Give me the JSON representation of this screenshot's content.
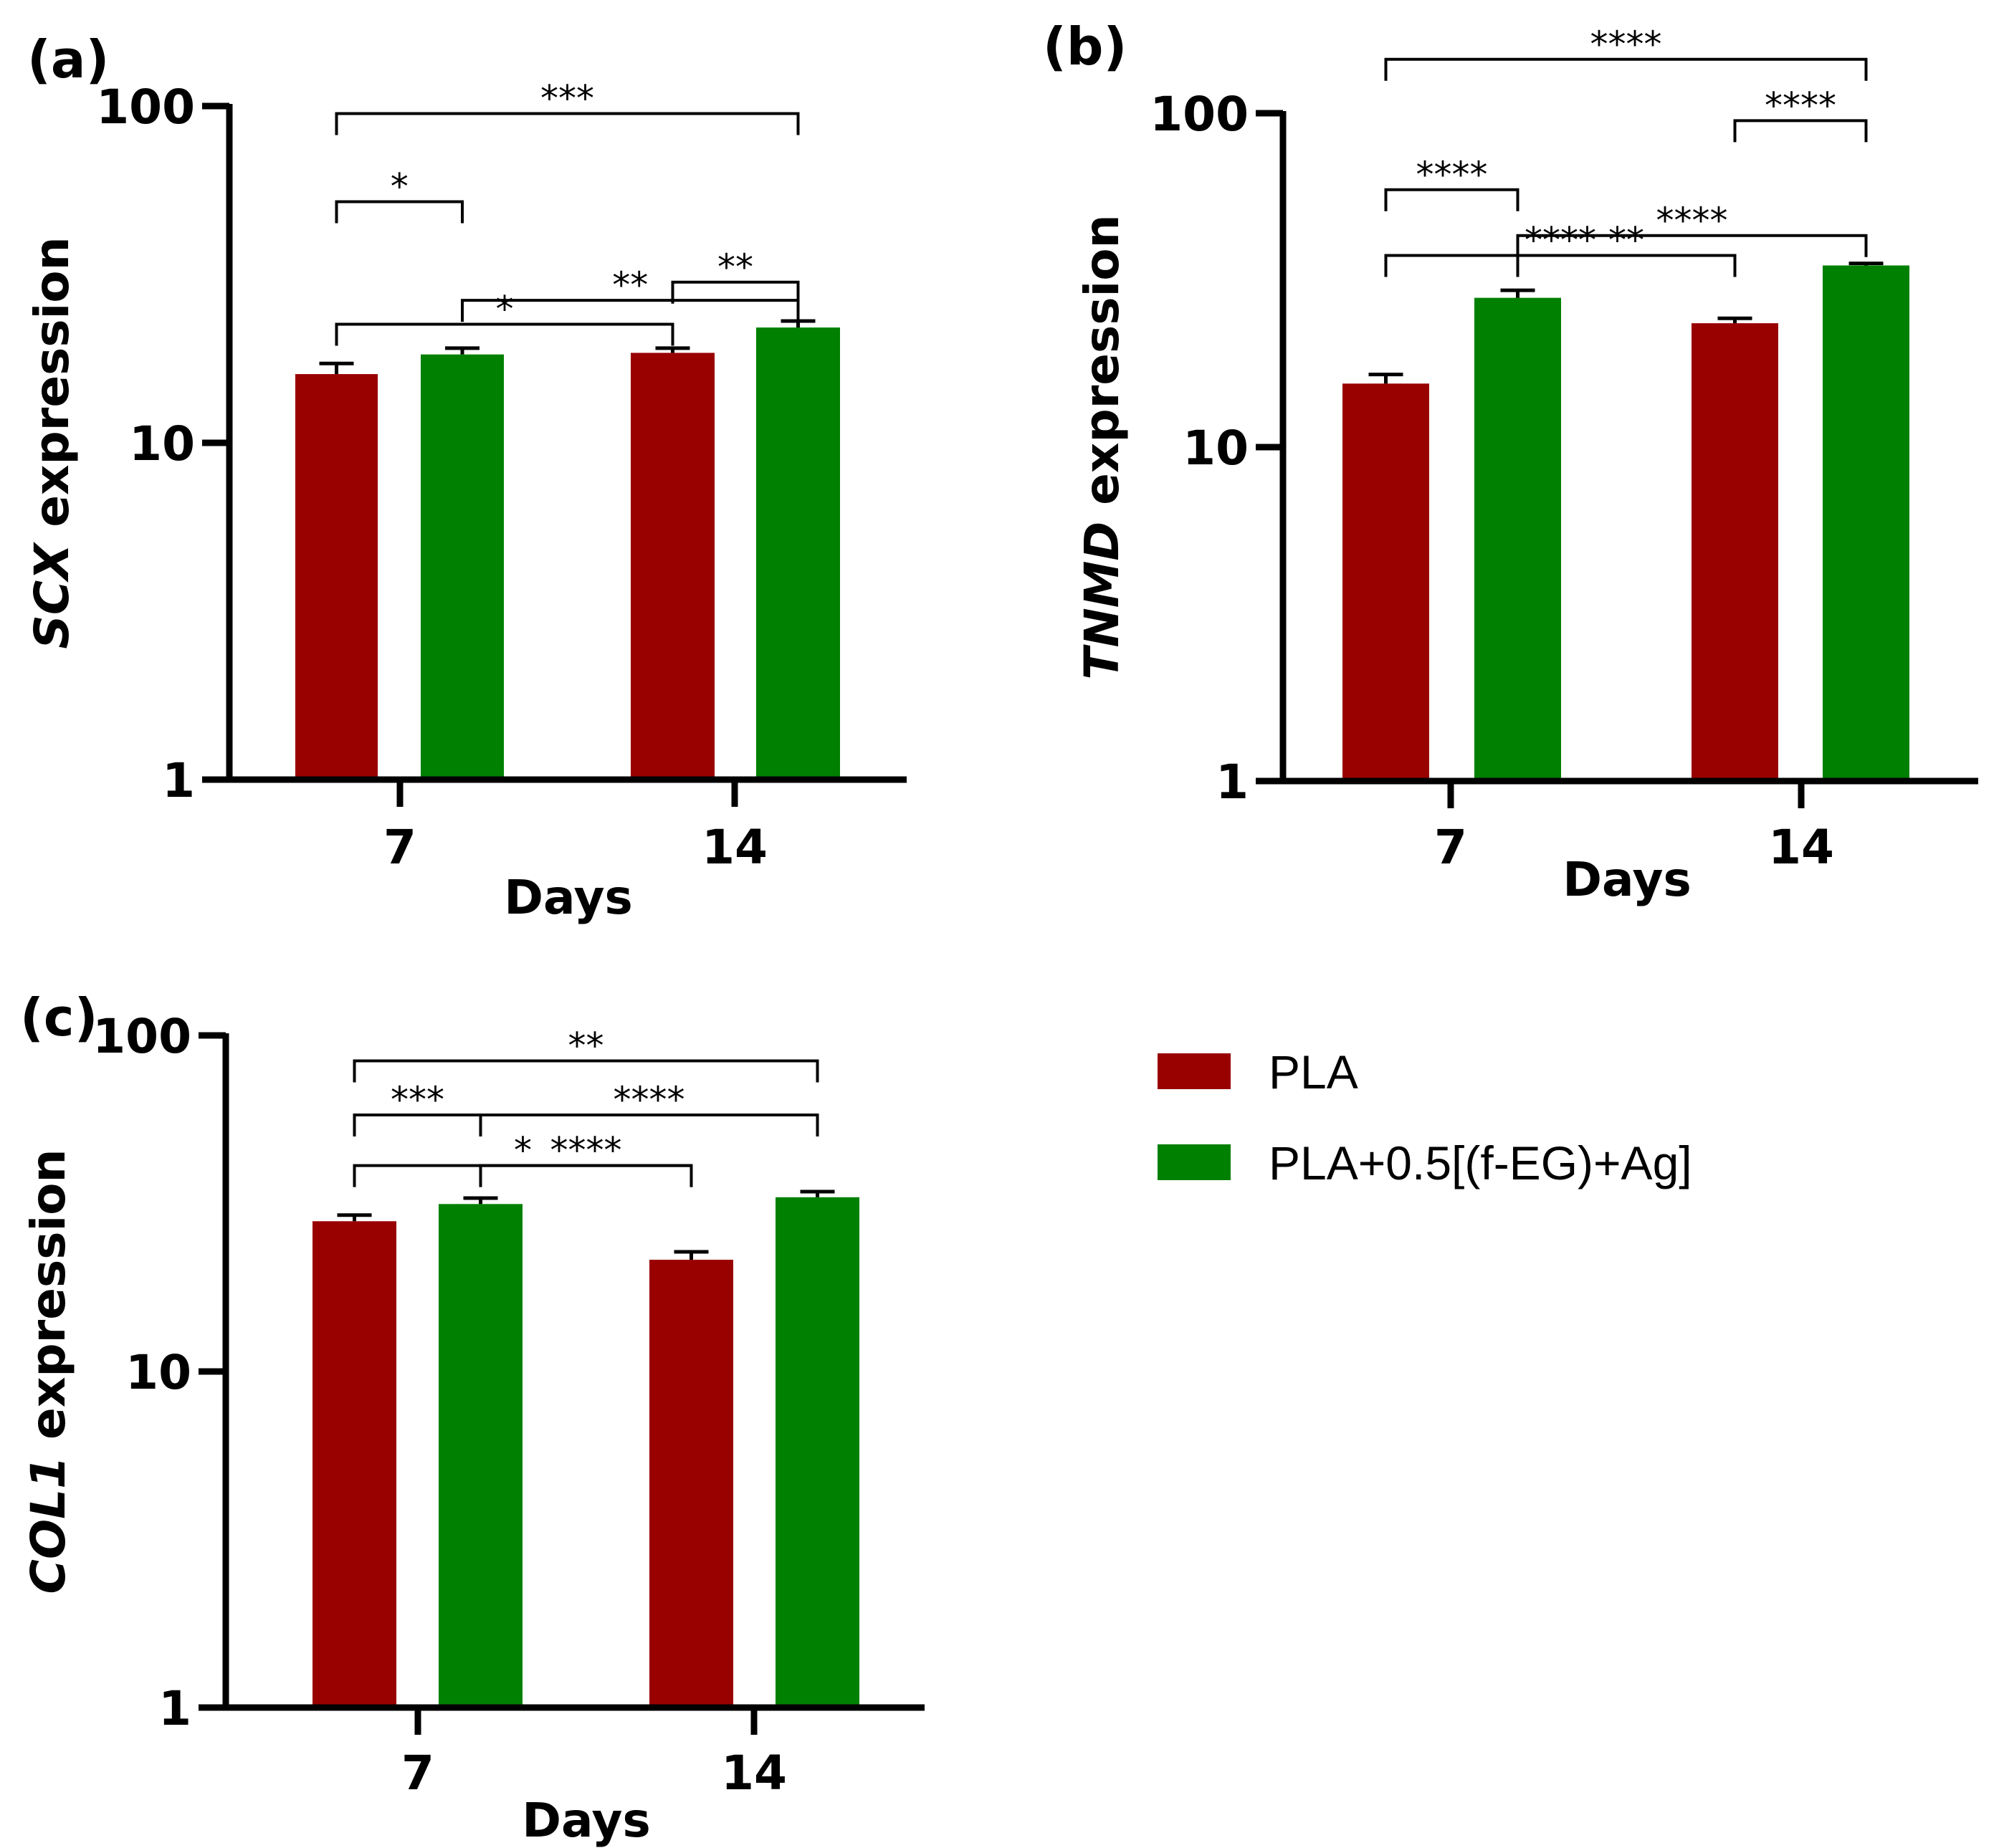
{
  "chart_data": [
    {
      "type": "bar",
      "panel_label": "(a)",
      "gene": "SCX",
      "ylabel_suffix": " expression",
      "xlabel": "Days",
      "yscale": "log",
      "ylim": [
        1,
        100
      ],
      "yticks": [
        "1",
        "10",
        "100"
      ],
      "categories": [
        "7",
        "14"
      ],
      "series": [
        {
          "name": "PLA",
          "values": [
            16,
            18.5
          ],
          "errors": [
            1.2,
            0.6
          ]
        },
        {
          "name": "PLA+0.5[(f-EG)+Ag]",
          "values": [
            18.3,
            22
          ],
          "errors": [
            0.8,
            1.0
          ]
        }
      ],
      "significance": [
        {
          "label": "***",
          "from": [
            0,
            0
          ],
          "to": [
            1,
            1
          ],
          "level": 95
        },
        {
          "label": "*",
          "from": [
            0,
            0
          ],
          "to": [
            1,
            0
          ],
          "level": 52
        },
        {
          "label": "**",
          "from": [
            0,
            1
          ],
          "to": [
            1,
            1
          ],
          "level": 30
        },
        {
          "label": "*",
          "from": [
            0,
            0
          ],
          "to": [
            0,
            1
          ],
          "level": 22.5
        },
        {
          "label": "**",
          "from": [
            1,
            0
          ],
          "to": [
            1,
            1
          ],
          "level": 26.5
        }
      ]
    },
    {
      "type": "bar",
      "panel_label": "(b)",
      "gene": "TNMD",
      "ylabel_suffix": " expression",
      "xlabel": "Days",
      "yscale": "log",
      "ylim": [
        1,
        100
      ],
      "yticks": [
        "1",
        "10",
        "100"
      ],
      "categories": [
        "7",
        "14"
      ],
      "series": [
        {
          "name": "PLA",
          "values": [
            15.5,
            23.5
          ],
          "errors": [
            1.0,
            0.8
          ]
        },
        {
          "name": "PLA+0.5[(f-EG)+Ag]",
          "values": [
            28,
            35
          ],
          "errors": [
            1.5,
            0.5
          ]
        }
      ],
      "significance": [
        {
          "label": "****",
          "from": [
            0,
            0
          ],
          "to": [
            1,
            1
          ],
          "level": 145
        },
        {
          "label": "****",
          "from": [
            0,
            1
          ],
          "to": [
            1,
            1
          ],
          "level": 95
        },
        {
          "label": "****",
          "from": [
            0,
            0
          ],
          "to": [
            1,
            0
          ],
          "level": 59
        },
        {
          "label": "****",
          "from": [
            0,
            0
          ],
          "to": [
            0,
            1
          ],
          "level": 37.5
        },
        {
          "label": "**",
          "from": [
            0,
            1
          ],
          "to": [
            1,
            0
          ],
          "level": 37.5
        },
        {
          "label": "****",
          "from": [
            1,
            0
          ],
          "to": [
            1,
            1
          ],
          "level": 43
        }
      ]
    },
    {
      "type": "bar",
      "panel_label": "(c)",
      "gene": "COL1",
      "ylabel_suffix": " expression",
      "xlabel": "Days",
      "yscale": "log",
      "ylim": [
        1,
        100
      ],
      "yticks": [
        "1",
        "10",
        "100"
      ],
      "categories": [
        "7",
        "14"
      ],
      "series": [
        {
          "name": "PLA",
          "values": [
            28,
            21.5
          ],
          "errors": [
            1.2,
            1.2
          ]
        },
        {
          "name": "PLA+0.5[(f-EG)+Ag]",
          "values": [
            31.5,
            33
          ],
          "errors": [
            1.3,
            1.3
          ]
        }
      ],
      "significance": [
        {
          "label": "**",
          "from": [
            0,
            0
          ],
          "to": [
            1,
            1
          ],
          "level": 84
        },
        {
          "label": "***",
          "from": [
            0,
            0
          ],
          "to": [
            1,
            0
          ],
          "level": 58
        },
        {
          "label": "****",
          "from": [
            1,
            0
          ],
          "to": [
            1,
            1
          ],
          "level": 58
        },
        {
          "label": "*",
          "from": [
            0,
            0
          ],
          "to": [
            0,
            1
          ],
          "level": 41
        },
        {
          "label": "****",
          "from": [
            0,
            1
          ],
          "to": [
            1,
            0
          ],
          "level": 41
        }
      ]
    }
  ],
  "legend": {
    "items": [
      {
        "label": "PLA",
        "color": "#990000"
      },
      {
        "label": "PLA+0.5[(f-EG)+Ag]",
        "color": "#008000"
      }
    ]
  },
  "colors": {
    "pla": "#990000",
    "composite": "#008000",
    "axis": "#000000"
  }
}
